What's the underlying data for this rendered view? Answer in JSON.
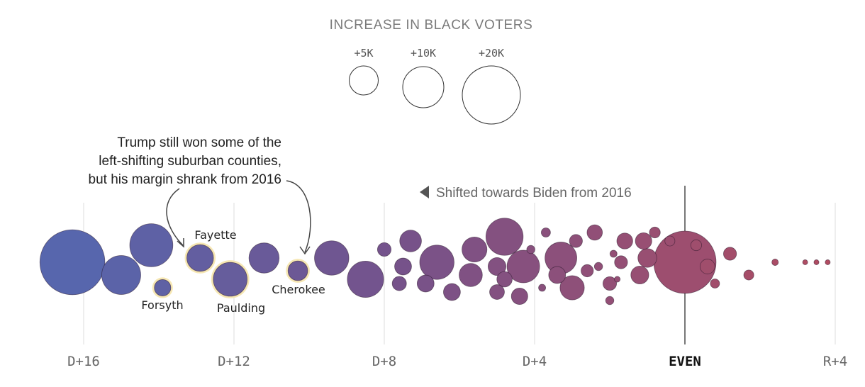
{
  "chart_data": {
    "type": "scatter",
    "title": "INCREASE IN BLACK VOTERS",
    "xlabel": "",
    "ylabel": "",
    "xlim": [
      -17,
      4
    ],
    "x_ticks": [
      {
        "label": "D+16",
        "value": -16
      },
      {
        "label": "D+12",
        "value": -12
      },
      {
        "label": "D+8",
        "value": -8
      },
      {
        "label": "D+4",
        "value": -4
      },
      {
        "label": "EVEN",
        "value": 0
      },
      {
        "label": "R+4",
        "value": 4
      }
    ],
    "size_legend": [
      {
        "label": "+5K",
        "value": 5000
      },
      {
        "label": "+10K",
        "value": 10000
      },
      {
        "label": "+20K",
        "value": 20000
      }
    ],
    "shift_label": "Shifted towards Biden from 2016",
    "annotation": [
      "Trump still won some of the",
      "left-shifting suburban counties,",
      "but his margin shrank from 2016"
    ],
    "points": [
      {
        "margin": -16.3,
        "lane": 0.0,
        "voters": 25000
      },
      {
        "margin": -15.0,
        "lane": 0.3,
        "voters": 9000
      },
      {
        "margin": -14.2,
        "lane": -0.4,
        "voters": 11000
      },
      {
        "margin": -13.9,
        "lane": 0.6,
        "voters": 1600,
        "name": "Forsyth",
        "highlight": true
      },
      {
        "margin": -12.9,
        "lane": -0.1,
        "voters": 4200,
        "name": "Fayette",
        "highlight": true
      },
      {
        "margin": -12.1,
        "lane": 0.4,
        "voters": 6800,
        "name": "Paulding",
        "highlight": true
      },
      {
        "margin": -11.2,
        "lane": -0.1,
        "voters": 5400
      },
      {
        "margin": -10.3,
        "lane": 0.2,
        "voters": 2300,
        "name": "Cherokee",
        "highlight": true
      },
      {
        "margin": -9.4,
        "lane": -0.1,
        "voters": 7000
      },
      {
        "margin": -8.5,
        "lane": 0.4,
        "voters": 7800
      },
      {
        "margin": -8.0,
        "lane": -0.3,
        "voters": 1100
      },
      {
        "margin": -7.6,
        "lane": 0.5,
        "voters": 1200
      },
      {
        "margin": -7.5,
        "lane": 0.1,
        "voters": 1700
      },
      {
        "margin": -7.3,
        "lane": -0.5,
        "voters": 2800
      },
      {
        "margin": -6.9,
        "lane": 0.5,
        "voters": 1700
      },
      {
        "margin": -6.6,
        "lane": 0.0,
        "voters": 7000
      },
      {
        "margin": -6.2,
        "lane": 0.7,
        "voters": 1700
      },
      {
        "margin": -5.7,
        "lane": 0.3,
        "voters": 3200
      },
      {
        "margin": -5.6,
        "lane": -0.3,
        "voters": 3700
      },
      {
        "margin": -5.0,
        "lane": 0.7,
        "voters": 1300
      },
      {
        "margin": -5.0,
        "lane": 0.1,
        "voters": 1900
      },
      {
        "margin": -4.8,
        "lane": -0.6,
        "voters": 8200
      },
      {
        "margin": -4.8,
        "lane": 0.4,
        "voters": 1400
      },
      {
        "margin": -4.4,
        "lane": 0.8,
        "voters": 1600
      },
      {
        "margin": -4.3,
        "lane": 0.1,
        "voters": 6300
      },
      {
        "margin": -4.1,
        "lane": -0.3,
        "voters": 400
      },
      {
        "margin": -3.8,
        "lane": 0.6,
        "voters": 300
      },
      {
        "margin": -3.7,
        "lane": -0.7,
        "voters": 500
      },
      {
        "margin": -3.4,
        "lane": 0.3,
        "voters": 1700
      },
      {
        "margin": -3.3,
        "lane": -0.1,
        "voters": 6000
      },
      {
        "margin": -3.0,
        "lane": 0.6,
        "voters": 3500
      },
      {
        "margin": -2.9,
        "lane": -0.5,
        "voters": 1000
      },
      {
        "margin": -2.6,
        "lane": 0.2,
        "voters": 900
      },
      {
        "margin": -2.4,
        "lane": -0.7,
        "voters": 1400
      },
      {
        "margin": -2.3,
        "lane": 0.1,
        "voters": 400
      },
      {
        "margin": -2.0,
        "lane": 0.5,
        "voters": 1100
      },
      {
        "margin": -2.0,
        "lane": 0.9,
        "voters": 400
      },
      {
        "margin": -1.9,
        "lane": -0.2,
        "voters": 300
      },
      {
        "margin": -1.8,
        "lane": 0.4,
        "voters": 200
      },
      {
        "margin": -1.7,
        "lane": 0.0,
        "voters": 1000
      },
      {
        "margin": -1.6,
        "lane": -0.5,
        "voters": 1500
      },
      {
        "margin": -1.2,
        "lane": 0.3,
        "voters": 1900
      },
      {
        "margin": -1.1,
        "lane": -0.5,
        "voters": 1600
      },
      {
        "margin": -1.0,
        "lane": -0.1,
        "voters": 2100
      },
      {
        "margin": -0.8,
        "lane": -0.7,
        "voters": 700
      },
      {
        "margin": -0.4,
        "lane": -0.5,
        "voters": 600
      },
      {
        "margin": 0.0,
        "lane": 0.0,
        "voters": 23000
      },
      {
        "margin": 0.3,
        "lane": -0.4,
        "voters": 700
      },
      {
        "margin": 0.6,
        "lane": 0.1,
        "voters": 1300
      },
      {
        "margin": 0.8,
        "lane": 0.5,
        "voters": 500
      },
      {
        "margin": 1.2,
        "lane": -0.2,
        "voters": 1000
      },
      {
        "margin": 1.7,
        "lane": 0.3,
        "voters": 600
      },
      {
        "margin": 2.4,
        "lane": 0.0,
        "voters": 250
      },
      {
        "margin": 3.2,
        "lane": 0.0,
        "voters": 150
      },
      {
        "margin": 3.5,
        "lane": 0.0,
        "voters": 150
      },
      {
        "margin": 3.8,
        "lane": 0.0,
        "voters": 150
      }
    ]
  }
}
